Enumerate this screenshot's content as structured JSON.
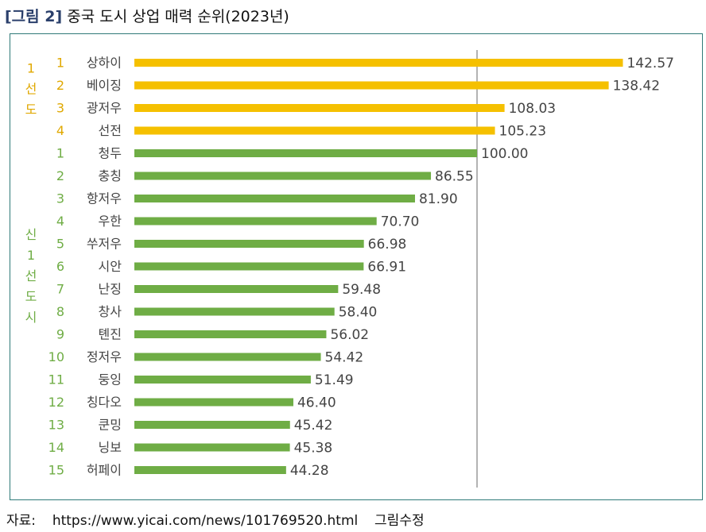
{
  "title": {
    "figure_label": "[그림 2]",
    "text": "중국 도시 상업 매력 순위(2023년)"
  },
  "source": {
    "label": "자료:",
    "url": "https://www.yicai.com/news/101769520.html",
    "note": "그림수정"
  },
  "colors": {
    "tier1": "#F5C000",
    "new_tier1": "#6FAD45",
    "tier1_text": "#E0A800",
    "new_tier1_text": "#6FAD45",
    "label_text": "#444444",
    "reference_line": "#8a8a8a",
    "frame": "#2f7a78"
  },
  "chart_data": {
    "type": "bar",
    "orientation": "horizontal",
    "reference_value": 100,
    "groups": [
      {
        "label": "1선도",
        "label_chars": [
          "1",
          "선",
          "도"
        ],
        "color_key": "tier1",
        "row_range": [
          0,
          3
        ]
      },
      {
        "label": "신1선도시",
        "label_chars": [
          "신",
          "1",
          "선",
          "도",
          "시"
        ],
        "color_key": "new_tier1",
        "row_range": [
          4,
          18
        ]
      }
    ],
    "rows": [
      {
        "rank": "1",
        "city": "상하이",
        "value": 142.57,
        "group": 0
      },
      {
        "rank": "2",
        "city": "베이징",
        "value": 138.42,
        "group": 0
      },
      {
        "rank": "3",
        "city": "광저우",
        "value": 108.03,
        "group": 0
      },
      {
        "rank": "4",
        "city": "선전",
        "value": 105.23,
        "group": 0
      },
      {
        "rank": "1",
        "city": "청두",
        "value": 100.0,
        "group": 1
      },
      {
        "rank": "2",
        "city": "충칭",
        "value": 86.55,
        "group": 1
      },
      {
        "rank": "3",
        "city": "항저우",
        "value": 81.9,
        "group": 1
      },
      {
        "rank": "4",
        "city": "우한",
        "value": 70.7,
        "group": 1
      },
      {
        "rank": "5",
        "city": "쑤저우",
        "value": 66.98,
        "group": 1
      },
      {
        "rank": "6",
        "city": "시안",
        "value": 66.91,
        "group": 1
      },
      {
        "rank": "7",
        "city": "난징",
        "value": 59.48,
        "group": 1
      },
      {
        "rank": "8",
        "city": "창사",
        "value": 58.4,
        "group": 1
      },
      {
        "rank": "9",
        "city": "톈진",
        "value": 56.02,
        "group": 1
      },
      {
        "rank": "10",
        "city": "정저우",
        "value": 54.42,
        "group": 1
      },
      {
        "rank": "11",
        "city": "둥잉",
        "value": 51.49,
        "group": 1
      },
      {
        "rank": "12",
        "city": "칭다오",
        "value": 46.4,
        "group": 1
      },
      {
        "rank": "13",
        "city": "쿤밍",
        "value": 45.42,
        "group": 1
      },
      {
        "rank": "14",
        "city": "닝보",
        "value": 45.38,
        "group": 1
      },
      {
        "rank": "15",
        "city": "허페이",
        "value": 44.28,
        "group": 1
      }
    ]
  }
}
